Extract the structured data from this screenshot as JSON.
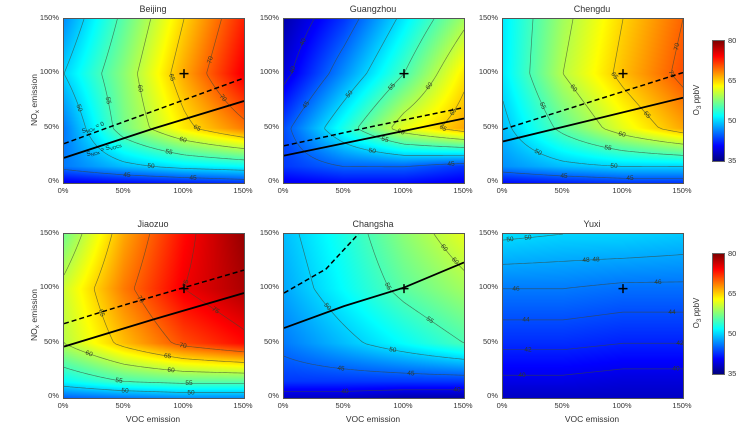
{
  "figure": {
    "background": "#ffffff",
    "x_ticks": [
      "0%",
      "50%",
      "100%",
      "150%"
    ],
    "y_ticks": [
      "150%",
      "100%",
      "50%",
      "0%"
    ],
    "xlabel": "VOC emission",
    "ylabel": {
      "pre": "NO",
      "sub": "x",
      "post": " emission"
    },
    "colorbar": {
      "label": {
        "pre": "O",
        "sub": "3",
        "post": " ppbV"
      },
      "ticks": [
        "80",
        "65",
        "50",
        "35"
      ],
      "min": 35,
      "max": 80,
      "colormap": "jet"
    }
  },
  "chart_data": [
    {
      "type": "heatmap",
      "title": "Beijing",
      "xlabel": "VOC emission",
      "ylabel": "NOx emission",
      "x_percent": [
        0,
        50,
        100,
        150
      ],
      "y_percent": [
        0,
        15,
        50,
        100,
        150
      ],
      "o3_ppbv": [
        [
          40,
          41,
          42,
          43
        ],
        [
          46,
          49,
          51,
          52
        ],
        [
          46,
          57,
          64,
          69
        ],
        [
          50,
          58,
          67,
          75
        ],
        [
          47,
          56,
          65,
          73
        ]
      ],
      "contour_levels": [
        40,
        45,
        50,
        55,
        60,
        65,
        70,
        75
      ],
      "marker_percent": {
        "u": 100,
        "v": 100,
        "symbol": "+"
      },
      "dashed_line": {
        "points": [
          [
            0,
            36
          ],
          [
            75,
            66
          ],
          [
            150,
            96
          ]
        ]
      },
      "solid_line": {
        "points": [
          [
            0,
            23
          ],
          [
            75,
            50
          ],
          [
            150,
            75
          ]
        ]
      },
      "line_labels": [
        {
          "text": "S_NOx = 0",
          "line": "dashed",
          "u": 15,
          "v": 47
        },
        {
          "text": "S_NOx = S_VOCs",
          "line": "solid",
          "u": 19,
          "v": 26
        }
      ]
    },
    {
      "type": "heatmap",
      "title": "Guangzhou",
      "xlabel": "VOC emission",
      "ylabel": "NOx emission",
      "x_percent": [
        0,
        50,
        100,
        150
      ],
      "y_percent": [
        0,
        15,
        50,
        100,
        150
      ],
      "o3_ppbv": [
        [
          40,
          41,
          41,
          40
        ],
        [
          43,
          45,
          45,
          43
        ],
        [
          44,
          53,
          62,
          67
        ],
        [
          39,
          47,
          55,
          64
        ],
        [
          37,
          43,
          51,
          59
        ]
      ],
      "contour_levels": [
        40,
        45,
        50,
        55,
        60,
        65
      ],
      "marker_percent": {
        "u": 100,
        "v": 100,
        "symbol": "+"
      },
      "dashed_line": {
        "points": [
          [
            0,
            34
          ],
          [
            75,
            52
          ],
          [
            150,
            69
          ]
        ]
      },
      "solid_line": {
        "points": [
          [
            0,
            25
          ],
          [
            75,
            42
          ],
          [
            150,
            59
          ]
        ]
      }
    },
    {
      "type": "heatmap",
      "title": "Chengdu",
      "xlabel": "VOC emission",
      "ylabel": "NOx emission",
      "x_percent": [
        0,
        50,
        100,
        150
      ],
      "y_percent": [
        0,
        15,
        50,
        100,
        150
      ],
      "o3_ppbv": [
        [
          41,
          42,
          43,
          43
        ],
        [
          47,
          49,
          50,
          50
        ],
        [
          49,
          56,
          62,
          67
        ],
        [
          51,
          60,
          66,
          71
        ],
        [
          51,
          59,
          65,
          70
        ]
      ],
      "contour_levels": [
        40,
        45,
        50,
        55,
        60,
        65,
        70
      ],
      "marker_percent": {
        "u": 100,
        "v": 100,
        "symbol": "+"
      },
      "dashed_line": {
        "points": [
          [
            0,
            49
          ],
          [
            75,
            75
          ],
          [
            150,
            101
          ]
        ]
      },
      "solid_line": {
        "points": [
          [
            0,
            38
          ],
          [
            75,
            58
          ],
          [
            150,
            78
          ]
        ]
      }
    },
    {
      "type": "heatmap",
      "title": "Jiaozuo",
      "xlabel": "VOC emission",
      "ylabel": "NOx emission",
      "x_percent": [
        0,
        50,
        100,
        150
      ],
      "y_percent": [
        0,
        15,
        50,
        100,
        150
      ],
      "o3_ppbv": [
        [
          45,
          46,
          47,
          47
        ],
        [
          52,
          55,
          56,
          56
        ],
        [
          60,
          66,
          71,
          74
        ],
        [
          61,
          69,
          75,
          78
        ],
        [
          57,
          67,
          74,
          79
        ]
      ],
      "contour_levels": [
        50,
        55,
        60,
        65,
        70,
        75
      ],
      "marker_percent": {
        "u": 100,
        "v": 100,
        "symbol": "+"
      },
      "dashed_line": {
        "points": [
          [
            0,
            68
          ],
          [
            50,
            85
          ],
          [
            100,
            101
          ],
          [
            150,
            117
          ]
        ]
      },
      "solid_line": {
        "points": [
          [
            0,
            47
          ],
          [
            75,
            72
          ],
          [
            150,
            96
          ]
        ]
      }
    },
    {
      "type": "heatmap",
      "title": "Changsha",
      "xlabel": "VOC emission",
      "ylabel": "NOx emission",
      "x_percent": [
        0,
        50,
        100,
        150
      ],
      "y_percent": [
        0,
        15,
        50,
        100,
        150
      ],
      "o3_ppbv": [
        [
          38,
          38,
          37,
          37
        ],
        [
          43,
          43,
          43,
          43
        ],
        [
          46,
          49,
          52,
          55
        ],
        [
          48,
          52,
          56,
          59
        ],
        [
          49,
          53,
          58,
          62
        ]
      ],
      "contour_levels": [
        40,
        45,
        50,
        55,
        60
      ],
      "marker_percent": {
        "u": 100,
        "v": 100,
        "symbol": "+"
      },
      "dashed_line": {
        "points": [
          [
            0,
            96
          ],
          [
            35,
            118
          ],
          [
            62,
            150
          ]
        ]
      },
      "solid_line": {
        "points": [
          [
            0,
            64
          ],
          [
            50,
            84
          ],
          [
            100,
            101
          ],
          [
            150,
            124
          ]
        ]
      }
    },
    {
      "type": "heatmap",
      "title": "Yuxi",
      "xlabel": "VOC emission",
      "ylabel": "NOx emission",
      "x_percent": [
        0,
        50,
        100,
        150
      ],
      "y_percent": [
        0,
        15,
        50,
        100,
        150
      ],
      "o3_ppbv": [
        [
          38,
          38,
          38,
          38
        ],
        [
          39.5,
          39.5,
          39,
          39
        ],
        [
          42.5,
          42.5,
          42,
          42
        ],
        [
          46,
          46,
          45.5,
          45.5
        ],
        [
          50.5,
          50,
          50,
          49.5
        ]
      ],
      "contour_levels": [
        40,
        42,
        44,
        46,
        48,
        50
      ],
      "marker_percent": {
        "u": 100,
        "v": 100,
        "symbol": "+"
      }
    }
  ]
}
